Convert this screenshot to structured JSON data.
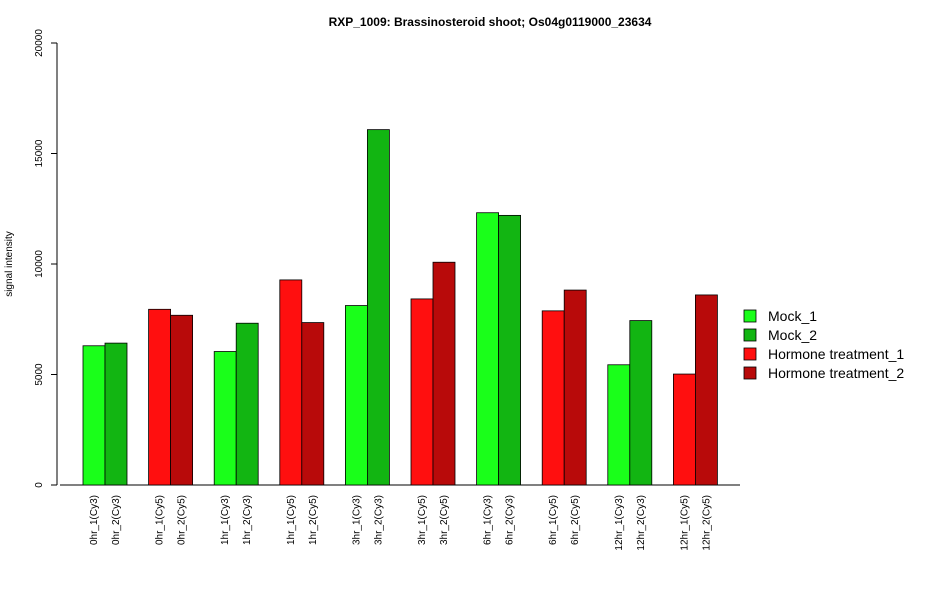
{
  "chart_data": {
    "type": "bar",
    "title": "RXP_1009: Brassinosteroid shoot; Os04g0119000_23634",
    "xlabel": "",
    "ylabel": "signal intensity",
    "ylim": [
      0,
      20000
    ],
    "yticks": [
      0,
      5000,
      10000,
      15000,
      20000
    ],
    "grid": false,
    "legend_position": "right",
    "legend": [
      {
        "label": "Mock_1",
        "color": "#1aff1a"
      },
      {
        "label": "Mock_2",
        "color": "#12b512"
      },
      {
        "label": "Hormone treatment_1",
        "color": "#ff0f0f"
      },
      {
        "label": "Hormone treatment_2",
        "color": "#b80a0a"
      }
    ],
    "groups": [
      {
        "bars": [
          {
            "label": "0hr_1(Cy3)",
            "value": 6300,
            "color": "#1aff1a"
          },
          {
            "label": "0hr_2(Cy3)",
            "value": 6420,
            "color": "#12b512"
          }
        ]
      },
      {
        "bars": [
          {
            "label": "0hr_1(Cy5)",
            "value": 7950,
            "color": "#ff0f0f"
          },
          {
            "label": "0hr_2(Cy5)",
            "value": 7680,
            "color": "#b80a0a"
          }
        ]
      },
      {
        "bars": [
          {
            "label": "1hr_1(Cy3)",
            "value": 6040,
            "color": "#1aff1a"
          },
          {
            "label": "1hr_2(Cy3)",
            "value": 7320,
            "color": "#12b512"
          }
        ]
      },
      {
        "bars": [
          {
            "label": "1hr_1(Cy5)",
            "value": 9280,
            "color": "#ff0f0f"
          },
          {
            "label": "1hr_2(Cy5)",
            "value": 7350,
            "color": "#b80a0a"
          }
        ]
      },
      {
        "bars": [
          {
            "label": "3hr_1(Cy3)",
            "value": 8120,
            "color": "#1aff1a"
          },
          {
            "label": "3hr_2(Cy3)",
            "value": 16080,
            "color": "#12b512"
          }
        ]
      },
      {
        "bars": [
          {
            "label": "3hr_1(Cy5)",
            "value": 8420,
            "color": "#ff0f0f"
          },
          {
            "label": "3hr_2(Cy5)",
            "value": 10080,
            "color": "#b80a0a"
          }
        ]
      },
      {
        "bars": [
          {
            "label": "6hr_1(Cy3)",
            "value": 12320,
            "color": "#1aff1a"
          },
          {
            "label": "6hr_2(Cy3)",
            "value": 12200,
            "color": "#12b512"
          }
        ]
      },
      {
        "bars": [
          {
            "label": "6hr_1(Cy5)",
            "value": 7880,
            "color": "#ff0f0f"
          },
          {
            "label": "6hr_2(Cy5)",
            "value": 8820,
            "color": "#b80a0a"
          }
        ]
      },
      {
        "bars": [
          {
            "label": "12hr_1(Cy3)",
            "value": 5440,
            "color": "#1aff1a"
          },
          {
            "label": "12hr_2(Cy3)",
            "value": 7440,
            "color": "#12b512"
          }
        ]
      },
      {
        "bars": [
          {
            "label": "12hr_1(Cy5)",
            "value": 5020,
            "color": "#ff0f0f"
          },
          {
            "label": "12hr_2(Cy5)",
            "value": 8600,
            "color": "#b80a0a"
          }
        ]
      }
    ]
  }
}
